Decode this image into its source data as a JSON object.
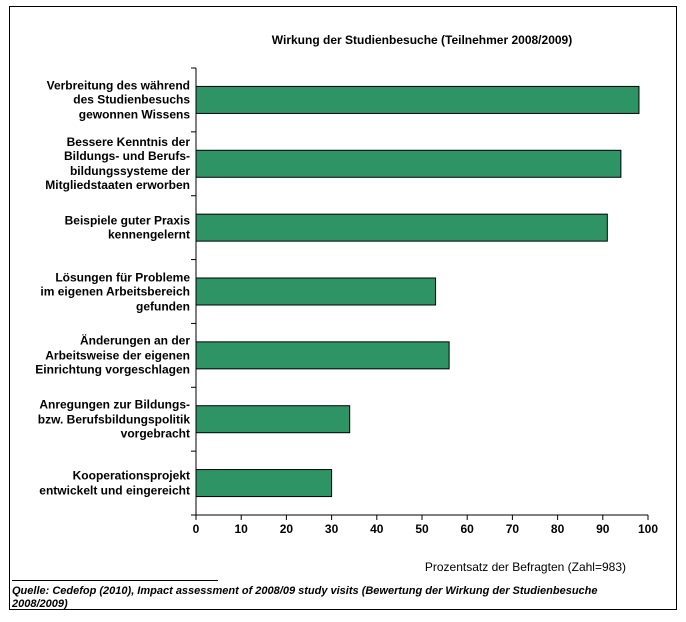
{
  "chart_data": {
    "type": "bar",
    "orientation": "horizontal",
    "title": "Wirkung der Studienbesuche (Teilnehmer 2008/2009)",
    "xlabel": "Prozentsatz der Befragten (Zahl=983)",
    "xlim": [
      0,
      100
    ],
    "xticks": [
      "0",
      "10",
      "20",
      "30",
      "40",
      "50",
      "60",
      "70",
      "80",
      "90",
      "100"
    ],
    "categories": [
      "Verbreitung des während\ndes Studienbesuchs\ngewonnen Wissens",
      "Bessere Kenntnis der\nBildungs- und Berufs-\nbildungssysteme der\nMitgliedstaaten erworben",
      "Beispiele guter Praxis\nkennengelernt",
      "Lösungen für Probleme\nim eigenen Arbeitsbereich\ngefunden",
      "Änderungen an der\nArbeitsweise der eigenen\nEinrichtung vorgeschlagen",
      "Anregungen zur Bildungs-\nbzw. Berufsbildungspolitik\nvorgebracht",
      "Kooperationsprojekt\nentwickelt und eingereicht"
    ],
    "values": [
      98,
      94,
      91,
      53,
      56,
      34,
      30
    ],
    "bar_color": "#2e9466",
    "grid": false
  },
  "source": "Quelle: Cedefop (2010), Impact assessment of 2008/09 study visits (Bewertung der Wirkung der Studienbesuche 2008/2009)"
}
